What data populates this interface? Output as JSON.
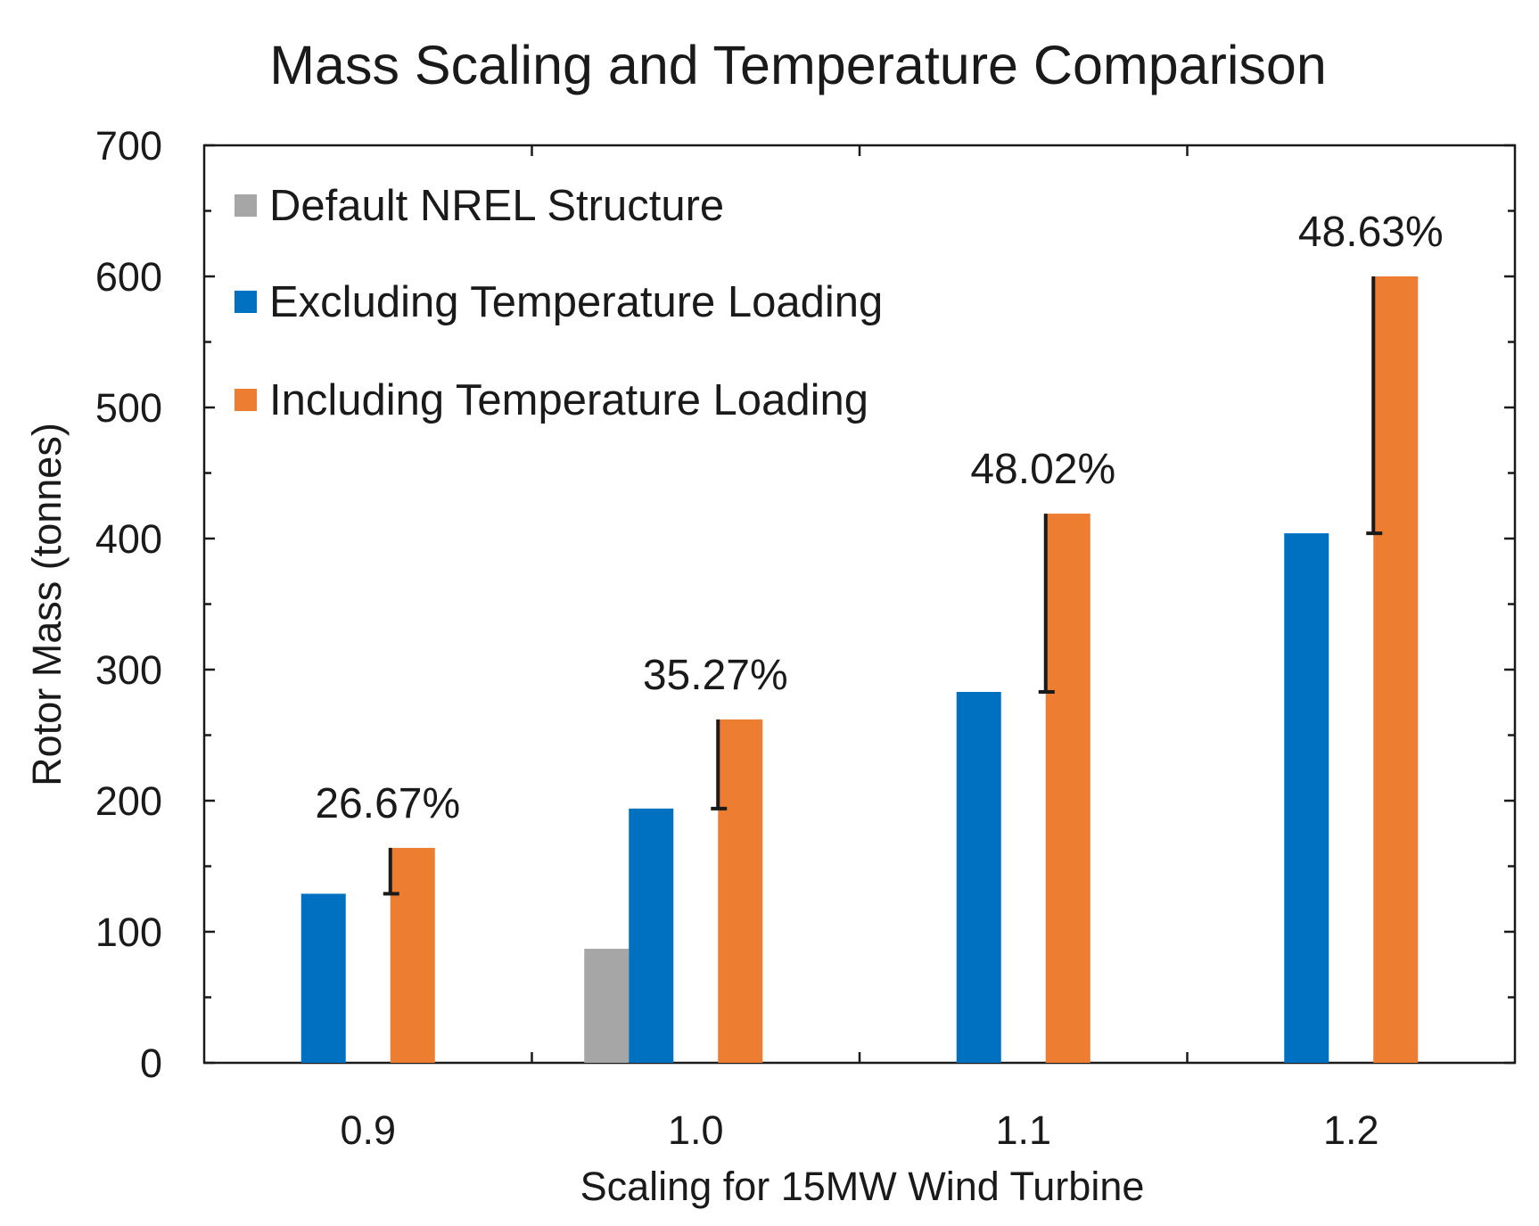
{
  "chart_data": {
    "type": "bar",
    "title": "Mass Scaling and Temperature Comparison",
    "xlabel": "Scaling for 15MW Wind Turbine",
    "ylabel": "Rotor Mass (tonnes)",
    "ylim": [
      0,
      700
    ],
    "yticks": [
      "0",
      "100",
      "200",
      "300",
      "400",
      "500",
      "600",
      "700"
    ],
    "categories": [
      "0.9",
      "1.0",
      "1.1",
      "1.2"
    ],
    "series": [
      {
        "name": "Default NREL Structure",
        "color": "#a6a6a6",
        "values": [
          null,
          87,
          null,
          null
        ]
      },
      {
        "name": "Excluding Temperature Loading",
        "color": "#0070c0",
        "values": [
          129,
          194,
          283,
          404
        ]
      },
      {
        "name": "Including Temperature Loading",
        "color": "#ed7d31",
        "values": [
          164,
          262,
          419,
          600
        ]
      }
    ],
    "annotations": [
      {
        "category": "0.9",
        "text": "26.67%",
        "from": 129,
        "to": 164
      },
      {
        "category": "1.0",
        "text": "35.27%",
        "from": 194,
        "to": 262
      },
      {
        "category": "1.1",
        "text": "48.02%",
        "from": 283,
        "to": 419
      },
      {
        "category": "1.2",
        "text": "48.63%",
        "from": 404,
        "to": 600
      }
    ],
    "legend_position": "top-left",
    "grid": false
  }
}
